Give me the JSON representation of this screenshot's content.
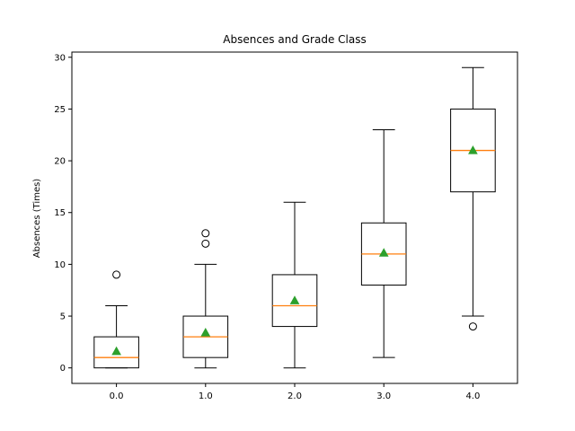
{
  "chart_data": {
    "type": "boxplot",
    "title": "Absences and Grade Class",
    "xlabel": "",
    "ylabel": "Absences (Times)",
    "categories": [
      "0.0",
      "1.0",
      "2.0",
      "3.0",
      "4.0"
    ],
    "ylim": [
      -1.5,
      30.5
    ],
    "yticks": [
      0,
      5,
      10,
      15,
      20,
      25,
      30
    ],
    "grid": false,
    "boxes": [
      {
        "category": "0.0",
        "whisker_low": 0,
        "q1": 0,
        "median": 1,
        "q3": 3,
        "whisker_high": 6,
        "mean": 1.6,
        "outliers": [
          9
        ]
      },
      {
        "category": "1.0",
        "whisker_low": 0,
        "q1": 1,
        "median": 3,
        "q3": 5,
        "whisker_high": 10,
        "mean": 3.4,
        "outliers": [
          12,
          13
        ]
      },
      {
        "category": "2.0",
        "whisker_low": 0,
        "q1": 4,
        "median": 6,
        "q3": 9,
        "whisker_high": 16,
        "mean": 6.5,
        "outliers": []
      },
      {
        "category": "3.0",
        "whisker_low": 1,
        "q1": 8,
        "median": 11,
        "q3": 14,
        "whisker_high": 23,
        "mean": 11.1,
        "outliers": []
      },
      {
        "category": "4.0",
        "whisker_low": 5,
        "q1": 17,
        "median": 21,
        "q3": 25,
        "whisker_high": 29,
        "mean": 21,
        "outliers": [
          4
        ]
      }
    ],
    "colors": {
      "box": "#000000",
      "median": "#ff7f0e",
      "mean": "#2ca02c",
      "outlier": "#000000"
    }
  }
}
